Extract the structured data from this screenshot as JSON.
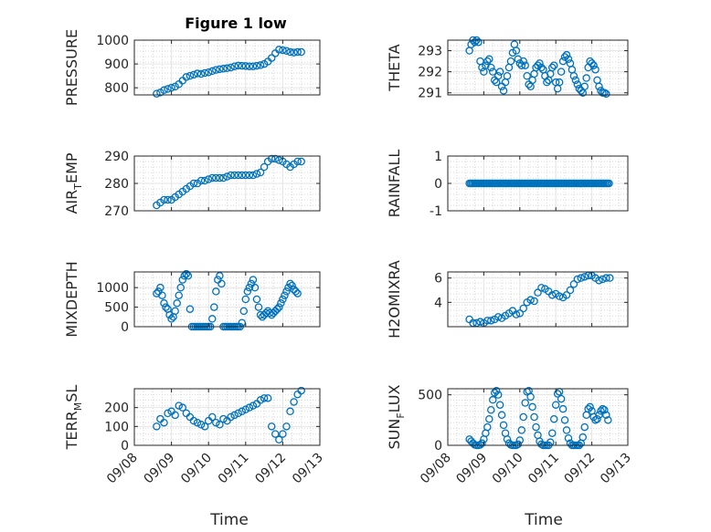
{
  "chart_data": [
    {
      "type": "scatter",
      "id": "pressure",
      "title": "Figure 1 low",
      "ylabel": "PRESSURE",
      "ylim": [
        770,
        1000
      ],
      "yticks": [
        800,
        900,
        1000
      ],
      "xlim": [
        "09/08",
        "09/13"
      ],
      "marker": "circle",
      "color": "#0072BD",
      "x": [
        8.6,
        8.7,
        8.8,
        8.9,
        9.0,
        9.1,
        9.2,
        9.3,
        9.4,
        9.5,
        9.6,
        9.7,
        9.8,
        9.9,
        10.0,
        10.1,
        10.2,
        10.3,
        10.4,
        10.5,
        10.6,
        10.7,
        10.8,
        10.9,
        11.0,
        11.1,
        11.2,
        11.3,
        11.4,
        11.5,
        11.6,
        11.7,
        11.8,
        11.9,
        12.0,
        12.1,
        12.2,
        12.3,
        12.4,
        12.5
      ],
      "y": [
        775,
        780,
        790,
        795,
        800,
        805,
        815,
        830,
        845,
        850,
        855,
        860,
        858,
        862,
        865,
        870,
        875,
        878,
        880,
        882,
        885,
        890,
        893,
        892,
        891,
        890,
        890,
        892,
        895,
        900,
        910,
        925,
        945,
        960,
        958,
        955,
        950,
        948,
        950,
        950
      ]
    },
    {
      "type": "scatter",
      "id": "theta",
      "ylabel": "THETA",
      "ylim": [
        290.9,
        293.5
      ],
      "yticks": [
        291,
        292,
        293
      ],
      "x": [
        8.6,
        8.65,
        8.7,
        8.75,
        8.8,
        8.85,
        8.9,
        8.95,
        9.0,
        9.05,
        9.1,
        9.15,
        9.2,
        9.25,
        9.3,
        9.35,
        9.4,
        9.45,
        9.5,
        9.55,
        9.6,
        9.65,
        9.7,
        9.75,
        9.8,
        9.85,
        9.9,
        9.95,
        10.0,
        10.05,
        10.1,
        10.15,
        10.2,
        10.25,
        10.3,
        10.35,
        10.4,
        10.45,
        10.5,
        10.55,
        10.6,
        10.65,
        10.7,
        10.75,
        10.8,
        10.85,
        10.9,
        10.95,
        11.0,
        11.05,
        11.1,
        11.15,
        11.2,
        11.25,
        11.3,
        11.35,
        11.4,
        11.45,
        11.5,
        11.55,
        11.6,
        11.65,
        11.7,
        11.75,
        11.8,
        11.85,
        11.9,
        11.95,
        12.0,
        12.05,
        12.1,
        12.15,
        12.2,
        12.25,
        12.3,
        12.35,
        12.4
      ],
      "y": [
        293.0,
        293.3,
        293.5,
        293.4,
        293.5,
        293.4,
        292.5,
        292.2,
        292.0,
        292.3,
        292.5,
        292.6,
        292.2,
        292.0,
        291.6,
        291.5,
        291.8,
        292.0,
        291.3,
        291.1,
        291.5,
        291.8,
        292.2,
        292.5,
        292.9,
        293.3,
        293.0,
        292.6,
        292.4,
        292.3,
        292.5,
        292.3,
        291.8,
        291.4,
        291.3,
        291.6,
        291.9,
        292.2,
        292.3,
        292.4,
        292.2,
        292.1,
        291.8,
        291.5,
        291.6,
        291.9,
        292.2,
        292.3,
        291.5,
        291.2,
        291.5,
        292.0,
        292.5,
        292.7,
        292.8,
        292.6,
        292.4,
        292.1,
        291.8,
        291.6,
        291.4,
        291.2,
        291.1,
        291.0,
        291.3,
        291.7,
        292.2,
        292.5,
        292.4,
        292.3,
        292.1,
        291.6,
        291.3,
        291.1,
        291.0,
        291.0,
        290.95
      ]
    },
    {
      "type": "scatter",
      "id": "air_temp",
      "ylabel": "AIR_TEMP",
      "ylim": [
        270,
        290
      ],
      "yticks": [
        270,
        280,
        290
      ],
      "x": [
        8.6,
        8.7,
        8.8,
        8.9,
        9.0,
        9.1,
        9.2,
        9.3,
        9.4,
        9.5,
        9.6,
        9.7,
        9.8,
        9.9,
        10.0,
        10.1,
        10.2,
        10.3,
        10.4,
        10.5,
        10.6,
        10.7,
        10.8,
        10.9,
        11.0,
        11.1,
        11.2,
        11.3,
        11.4,
        11.5,
        11.6,
        11.7,
        11.8,
        11.9,
        12.0,
        12.1,
        12.2,
        12.3,
        12.4,
        12.5
      ],
      "y": [
        272,
        273,
        274,
        274,
        274,
        275,
        276,
        277,
        278,
        279,
        280,
        280,
        281,
        281,
        281.5,
        282,
        282,
        282,
        282,
        282.5,
        283,
        283,
        283,
        283,
        283,
        283,
        283,
        283.5,
        284,
        286,
        288,
        289,
        289,
        288.5,
        288,
        287,
        286,
        287,
        288,
        288
      ]
    },
    {
      "type": "scatter",
      "id": "rainfall",
      "ylabel": "RAINFALL",
      "ylim": [
        -1,
        1
      ],
      "yticks": [
        -1,
        0,
        1
      ],
      "x_start": 8.6,
      "x_end": 12.5,
      "value": 0
    },
    {
      "type": "scatter",
      "id": "mixdepth",
      "ylabel": "MIXDEPTH",
      "ylim": [
        0,
        1400
      ],
      "yticks": [
        0,
        500,
        1000
      ],
      "x": [
        8.6,
        8.65,
        8.7,
        8.75,
        8.8,
        8.85,
        8.9,
        8.95,
        9.0,
        9.05,
        9.1,
        9.15,
        9.2,
        9.25,
        9.3,
        9.35,
        9.4,
        9.45,
        9.5,
        9.55,
        9.6,
        9.65,
        9.7,
        9.75,
        9.8,
        9.85,
        9.9,
        9.95,
        10.0,
        10.05,
        10.1,
        10.15,
        10.2,
        10.25,
        10.3,
        10.35,
        10.4,
        10.45,
        10.5,
        10.55,
        10.6,
        10.65,
        10.7,
        10.75,
        10.8,
        10.85,
        10.9,
        10.95,
        11.0,
        11.05,
        11.1,
        11.15,
        11.2,
        11.25,
        11.3,
        11.35,
        11.4,
        11.45,
        11.5,
        11.55,
        11.6,
        11.65,
        11.7,
        11.75,
        11.8,
        11.85,
        11.9,
        11.95,
        12.0,
        12.05,
        12.1,
        12.15,
        12.2,
        12.25,
        12.3,
        12.35,
        12.4
      ],
      "y": [
        850,
        900,
        1000,
        800,
        600,
        500,
        450,
        300,
        200,
        250,
        400,
        600,
        800,
        1000,
        1200,
        1300,
        1350,
        1300,
        450,
        0,
        0,
        0,
        0,
        0,
        0,
        0,
        0,
        0,
        0,
        0,
        200,
        500,
        900,
        1200,
        1300,
        1100,
        0,
        0,
        0,
        0,
        0,
        0,
        0,
        0,
        0,
        0,
        100,
        400,
        700,
        900,
        1000,
        1100,
        1200,
        1000,
        700,
        500,
        300,
        250,
        300,
        350,
        400,
        350,
        300,
        350,
        400,
        450,
        500,
        600,
        700,
        800,
        900,
        1000,
        1100,
        1050,
        950,
        900,
        850
      ]
    },
    {
      "type": "scatter",
      "id": "h2omixra",
      "ylabel": "H2OMIXRA",
      "ylim": [
        2,
        6.5
      ],
      "yticks": [
        4,
        6
      ],
      "x": [
        8.6,
        8.7,
        8.8,
        8.9,
        9.0,
        9.1,
        9.2,
        9.3,
        9.4,
        9.5,
        9.6,
        9.7,
        9.8,
        9.9,
        10.0,
        10.1,
        10.2,
        10.3,
        10.4,
        10.5,
        10.6,
        10.7,
        10.8,
        10.9,
        11.0,
        11.1,
        11.2,
        11.3,
        11.4,
        11.5,
        11.6,
        11.7,
        11.8,
        11.9,
        12.0,
        12.1,
        12.2,
        12.3,
        12.4,
        12.5
      ],
      "y": [
        2.6,
        2.3,
        2.3,
        2.4,
        2.3,
        2.5,
        2.5,
        2.6,
        2.8,
        2.7,
        2.9,
        3.1,
        3.3,
        3.0,
        3.1,
        3.5,
        4.0,
        4.2,
        4.1,
        4.8,
        5.2,
        5.1,
        4.9,
        4.6,
        4.7,
        4.5,
        4.4,
        4.6,
        5.0,
        5.5,
        5.9,
        6.0,
        6.1,
        6.2,
        6.2,
        6.0,
        5.8,
        5.9,
        6.0,
        6.0
      ]
    },
    {
      "type": "scatter",
      "id": "terr_msl",
      "ylabel": "TERR_MSL",
      "ylim": [
        0,
        300
      ],
      "yticks": [
        0,
        100,
        200
      ],
      "x": [
        8.6,
        8.7,
        8.8,
        8.9,
        9.0,
        9.1,
        9.2,
        9.3,
        9.4,
        9.5,
        9.6,
        9.7,
        9.8,
        9.9,
        10.0,
        10.1,
        10.2,
        10.3,
        10.4,
        10.5,
        10.6,
        10.7,
        10.8,
        10.9,
        11.0,
        11.1,
        11.2,
        11.3,
        11.4,
        11.5,
        11.6,
        11.7,
        11.8,
        11.9,
        12.0,
        12.1,
        12.2,
        12.3,
        12.4,
        12.5
      ],
      "y": [
        100,
        140,
        120,
        170,
        180,
        160,
        210,
        200,
        170,
        150,
        130,
        120,
        110,
        100,
        130,
        150,
        120,
        110,
        140,
        130,
        150,
        160,
        170,
        180,
        190,
        200,
        210,
        220,
        240,
        250,
        250,
        100,
        60,
        30,
        60,
        100,
        180,
        230,
        270,
        290
      ]
    },
    {
      "type": "scatter",
      "id": "sun_flux",
      "ylabel": "SUN_FLUX",
      "ylim": [
        0,
        560
      ],
      "yticks": [
        0,
        500
      ],
      "xlabel": "Time",
      "x": [
        8.6,
        8.65,
        8.7,
        8.75,
        8.8,
        8.85,
        8.9,
        8.95,
        9.0,
        9.05,
        9.1,
        9.15,
        9.2,
        9.25,
        9.3,
        9.35,
        9.4,
        9.45,
        9.5,
        9.55,
        9.6,
        9.65,
        9.7,
        9.75,
        9.8,
        9.85,
        9.9,
        9.95,
        10.0,
        10.05,
        10.1,
        10.15,
        10.2,
        10.25,
        10.3,
        10.35,
        10.4,
        10.45,
        10.5,
        10.55,
        10.6,
        10.65,
        10.7,
        10.75,
        10.8,
        10.85,
        10.9,
        10.95,
        11.0,
        11.05,
        11.1,
        11.15,
        11.2,
        11.25,
        11.3,
        11.35,
        11.4,
        11.45,
        11.5,
        11.55,
        11.6,
        11.65,
        11.7,
        11.75,
        11.8,
        11.85,
        11.9,
        11.95,
        12.0,
        12.05,
        12.1,
        12.15,
        12.2,
        12.25,
        12.3,
        12.35,
        12.4,
        12.45
      ],
      "y": [
        60,
        40,
        20,
        5,
        0,
        0,
        5,
        20,
        60,
        120,
        180,
        260,
        350,
        450,
        520,
        540,
        500,
        400,
        300,
        200,
        120,
        60,
        20,
        5,
        0,
        0,
        0,
        10,
        50,
        150,
        280,
        420,
        530,
        540,
        480,
        380,
        280,
        180,
        100,
        40,
        10,
        0,
        0,
        0,
        0,
        30,
        120,
        260,
        400,
        510,
        530,
        460,
        360,
        250,
        150,
        70,
        20,
        0,
        0,
        0,
        0,
        0,
        20,
        80,
        180,
        300,
        360,
        380,
        340,
        280,
        250,
        260,
        300,
        340,
        360,
        350,
        300,
        250
      ]
    }
  ],
  "x_axis": {
    "ticks": [
      "09/08",
      "09/09",
      "09/10",
      "09/11",
      "09/12",
      "09/13"
    ],
    "label": "Time"
  }
}
